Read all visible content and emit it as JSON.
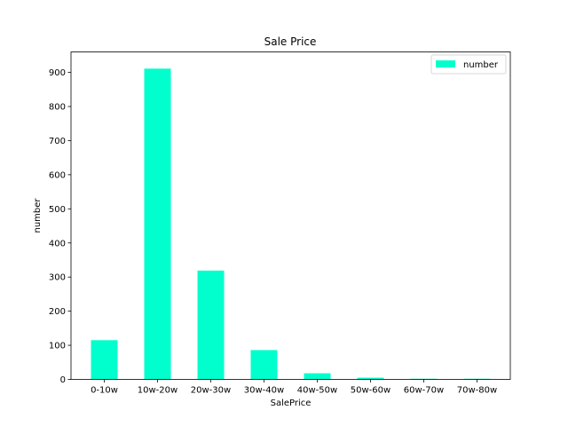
{
  "chart_data": {
    "type": "bar",
    "title": "Sale Price",
    "xlabel": "SalePrice",
    "ylabel": "number",
    "categories": [
      "0-10w",
      "10w-20w",
      "20w-30w",
      "30w-40w",
      "40w-50w",
      "50w-60w",
      "60w-70w",
      "70w-80w"
    ],
    "series": [
      {
        "name": "number",
        "color": "#00ffcc",
        "values": [
          115,
          911,
          319,
          86,
          18,
          5,
          2,
          2
        ]
      }
    ],
    "ylim": [
      0,
      960
    ],
    "yticks": [
      0,
      100,
      200,
      300,
      400,
      500,
      600,
      700,
      800,
      900
    ],
    "grid": false,
    "legend": "top-right"
  }
}
